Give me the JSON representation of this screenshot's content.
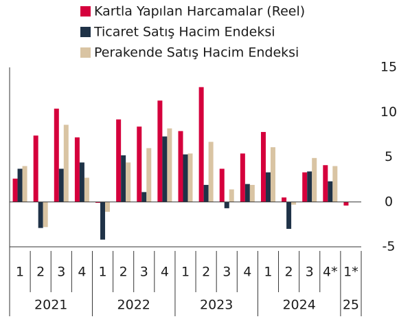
{
  "chart_data": {
    "type": "bar",
    "category_groups": [
      {
        "label": "2021",
        "categories": [
          "1",
          "2",
          "3",
          "4"
        ]
      },
      {
        "label": "2022",
        "categories": [
          "1",
          "2",
          "3",
          "4"
        ]
      },
      {
        "label": "2023",
        "categories": [
          "1",
          "2",
          "3",
          "4"
        ]
      },
      {
        "label": "2024",
        "categories": [
          "1",
          "2",
          "3",
          "4*"
        ]
      },
      {
        "label": "25",
        "categories": [
          "1*"
        ]
      }
    ],
    "series": [
      {
        "name": "Kartla Yapılan Harcamalar (Reel)",
        "color": "#d5003c",
        "values": [
          2.6,
          7.4,
          10.4,
          7.2,
          -0.1,
          9.2,
          8.4,
          11.3,
          7.9,
          12.8,
          3.7,
          5.4,
          7.8,
          0.5,
          3.3,
          4.1,
          -0.4
        ]
      },
      {
        "name": "Ticaret Satış Hacim Endeksi",
        "color": "#1f3247",
        "values": [
          3.7,
          -2.9,
          3.7,
          4.4,
          -4.2,
          5.2,
          1.1,
          7.3,
          5.3,
          1.9,
          -0.7,
          2.0,
          3.3,
          -3.0,
          3.4,
          2.3,
          null
        ]
      },
      {
        "name": "Perakende Satış Hacim Endeksi",
        "color": "#d9c4a3",
        "values": [
          4.0,
          -2.8,
          8.6,
          2.7,
          -1.1,
          4.4,
          6.0,
          8.2,
          5.4,
          6.7,
          1.4,
          1.9,
          6.1,
          -0.3,
          4.9,
          4.0,
          null
        ]
      }
    ],
    "ylim": [
      -5,
      15
    ],
    "yticks": [
      -5,
      0,
      5,
      10,
      15
    ]
  }
}
